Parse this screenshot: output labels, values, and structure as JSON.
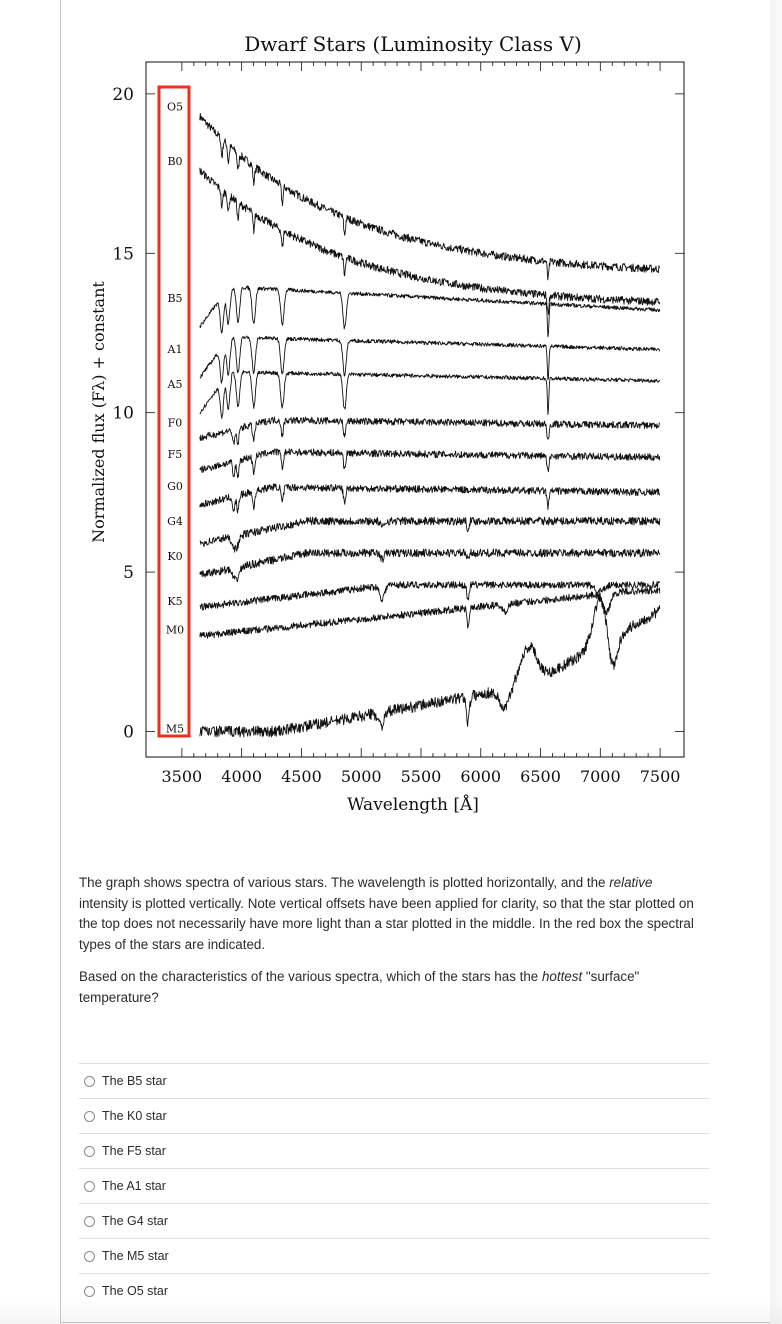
{
  "chart_data": {
    "type": "line",
    "title": "Dwarf Stars (Luminosity Class V)",
    "xlabel": "Wavelength [Å]",
    "ylabel": "Normalized flux (Fλ) + constant",
    "xlim": [
      3200,
      7700
    ],
    "ylim": [
      -0.8,
      21.0
    ],
    "xticks": [
      3500,
      4000,
      4500,
      5000,
      5500,
      6000,
      6500,
      7000,
      7500
    ],
    "yticks": [
      0,
      5,
      10,
      15,
      20
    ],
    "x_start": 3650,
    "x_end": 7500,
    "highlight_box": {
      "color": "#e8321f",
      "label": "spectral types"
    },
    "series": [
      {
        "name": "O5",
        "label_y": 19.6,
        "start": 19.3,
        "end": 14.3,
        "type": "hot"
      },
      {
        "name": "B0",
        "label_y": 17.9,
        "start": 17.6,
        "end": 13.3,
        "type": "hot"
      },
      {
        "name": "B5",
        "label_y": 13.6,
        "start": 13.6,
        "end": 12.3,
        "type": "balmer"
      },
      {
        "name": "A1",
        "label_y": 12.0,
        "start": 12.0,
        "end": 11.3,
        "type": "balmer"
      },
      {
        "name": "A5",
        "label_y": 10.9,
        "start": 10.9,
        "end": 10.4,
        "type": "balmer"
      },
      {
        "name": "F0",
        "label_y": 9.7,
        "start": 9.7,
        "end": 9.4,
        "type": "mid"
      },
      {
        "name": "F5",
        "label_y": 8.7,
        "start": 8.7,
        "end": 8.5,
        "type": "mid"
      },
      {
        "name": "G0",
        "label_y": 7.7,
        "start": 7.6,
        "end": 7.4,
        "type": "mid"
      },
      {
        "name": "G4",
        "label_y": 6.6,
        "start": 6.4,
        "end": 6.5,
        "type": "cool"
      },
      {
        "name": "K0",
        "label_y": 5.5,
        "start": 5.4,
        "end": 5.5,
        "type": "cool"
      },
      {
        "name": "K5",
        "label_y": 4.1,
        "start": 4.0,
        "end": 4.4,
        "type": "k5"
      },
      {
        "name": "M0",
        "label_y": 3.2,
        "start": 3.0,
        "end": 4.2,
        "type": "m0"
      },
      {
        "name": "M5",
        "label_y": 0.1,
        "start": 0.0,
        "end": 4.2,
        "type": "m5"
      }
    ]
  },
  "description": {
    "p1_a": "The graph shows spectra of various stars.  The wavelength is plotted horizontally, and the ",
    "p1_em": "relative",
    "p1_b": " intensity is plotted vertically.  Note vertical offsets have been applied for clarity, so that the star plotted on the top does not necessarily have more light than a star plotted in the middle.  In the red box the spectral types of the stars are indicated.",
    "p2_a": "Based on the characteristics of the various spectra, which of the stars has the ",
    "p2_em": "hottest",
    "p2_b": " \"surface\" temperature?"
  },
  "answers": [
    "The B5 star",
    "The K0 star",
    "The F5 star",
    "The A1 star",
    "The G4 star",
    "The M5 star",
    "The O5 star"
  ]
}
